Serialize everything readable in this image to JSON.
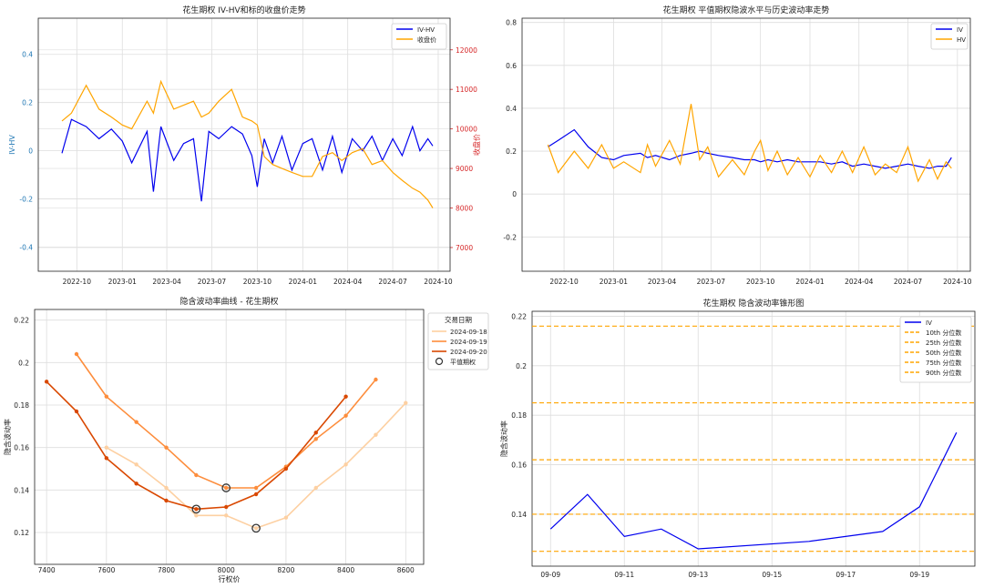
{
  "chart_data": [
    {
      "type": "line",
      "title": "花生期权 IV-HV和标的收盘价走势",
      "ylabel": "IV-HV",
      "y2label": "收盘价",
      "x_ticks": [
        "2022-10",
        "2023-01",
        "2023-04",
        "2023-07",
        "2023-10",
        "2024-01",
        "2024-04",
        "2024-07",
        "2024-10"
      ],
      "ylim": [
        -0.5,
        0.55
      ],
      "y_ticks": [
        0.4,
        0.2,
        0.0,
        -0.2,
        -0.4
      ],
      "y2lim": [
        6400,
        12800
      ],
      "y2_ticks": [
        12000,
        11000,
        10000,
        9000,
        8000,
        7000
      ],
      "legend": "top-right",
      "legend_entries": [
        "IV-HV",
        "收盘价"
      ],
      "series": [
        {
          "name": "IV-HV",
          "axis": "left",
          "color": "#0000ee",
          "x": [
            "2022-09-01",
            "2022-09-20",
            "2022-10-20",
            "2022-11-15",
            "2022-12-10",
            "2023-01-01",
            "2023-01-20",
            "2023-02-20",
            "2023-03-05",
            "2023-03-20",
            "2023-04-15",
            "2023-05-05",
            "2023-05-25",
            "2023-06-10",
            "2023-06-25",
            "2023-07-15",
            "2023-08-10",
            "2023-09-01",
            "2023-09-20",
            "2023-10-01",
            "2023-10-15",
            "2023-11-01",
            "2023-11-20",
            "2023-12-10",
            "2024-01-01",
            "2024-01-20",
            "2024-02-10",
            "2024-03-01",
            "2024-03-20",
            "2024-04-10",
            "2024-05-01",
            "2024-05-20",
            "2024-06-10",
            "2024-07-01",
            "2024-07-20",
            "2024-08-10",
            "2024-08-25",
            "2024-09-10",
            "2024-09-20"
          ],
          "y": [
            -0.01,
            0.13,
            0.1,
            0.05,
            0.09,
            0.04,
            -0.05,
            0.08,
            -0.17,
            0.1,
            -0.04,
            0.03,
            0.05,
            -0.21,
            0.08,
            0.05,
            0.1,
            0.07,
            -0.02,
            -0.15,
            0.05,
            -0.05,
            0.06,
            -0.08,
            0.03,
            0.05,
            -0.08,
            0.06,
            -0.09,
            0.05,
            0.0,
            0.06,
            -0.04,
            0.05,
            -0.02,
            0.1,
            0.0,
            0.05,
            0.02
          ]
        },
        {
          "name": "收盘价",
          "axis": "right",
          "color": "#ffa500",
          "x": [
            "2022-09-01",
            "2022-09-20",
            "2022-10-20",
            "2022-11-15",
            "2022-12-10",
            "2023-01-01",
            "2023-01-20",
            "2023-02-20",
            "2023-03-05",
            "2023-03-20",
            "2023-04-15",
            "2023-05-05",
            "2023-05-25",
            "2023-06-10",
            "2023-06-25",
            "2023-07-15",
            "2023-08-10",
            "2023-09-01",
            "2023-09-20",
            "2023-10-01",
            "2023-10-15",
            "2023-11-01",
            "2023-11-20",
            "2023-12-10",
            "2024-01-01",
            "2024-01-20",
            "2024-02-10",
            "2024-03-01",
            "2024-03-20",
            "2024-04-10",
            "2024-05-01",
            "2024-05-20",
            "2024-06-10",
            "2024-07-01",
            "2024-07-20",
            "2024-08-10",
            "2024-08-25",
            "2024-09-10",
            "2024-09-20"
          ],
          "y": [
            10200,
            10400,
            11100,
            10500,
            10300,
            10100,
            10000,
            10700,
            10400,
            11200,
            10500,
            10600,
            10700,
            10300,
            10400,
            10700,
            11000,
            10300,
            10200,
            10100,
            9300,
            9100,
            9000,
            8900,
            8800,
            8800,
            9300,
            9400,
            9200,
            9400,
            9500,
            9100,
            9200,
            8900,
            8700,
            8500,
            8400,
            8200,
            8000
          ]
        }
      ]
    },
    {
      "type": "line",
      "title": "花生期权 平值期权隐波水平与历史波动率走势",
      "x_ticks": [
        "2022-10",
        "2023-01",
        "2023-04",
        "2023-07",
        "2023-10",
        "2024-01",
        "2024-04",
        "2024-07",
        "2024-10"
      ],
      "ylim": [
        -0.36,
        0.82
      ],
      "y_ticks": [
        0.8,
        0.6,
        0.4,
        0.2,
        0.0,
        -0.2
      ],
      "legend": "top-right",
      "legend_entries": [
        "IV",
        "HV"
      ],
      "series": [
        {
          "name": "IV",
          "color": "#0000ee",
          "x": [
            "2022-09-01",
            "2022-09-20",
            "2022-10-20",
            "2022-11-15",
            "2022-12-10",
            "2023-01-01",
            "2023-01-20",
            "2023-02-20",
            "2023-03-05",
            "2023-03-20",
            "2023-04-15",
            "2023-05-05",
            "2023-05-25",
            "2023-06-10",
            "2023-06-25",
            "2023-07-15",
            "2023-08-10",
            "2023-09-01",
            "2023-09-20",
            "2023-10-01",
            "2023-10-15",
            "2023-11-01",
            "2023-11-20",
            "2023-12-10",
            "2024-01-01",
            "2024-01-20",
            "2024-02-10",
            "2024-03-01",
            "2024-03-20",
            "2024-04-10",
            "2024-05-01",
            "2024-05-20",
            "2024-06-10",
            "2024-07-01",
            "2024-07-20",
            "2024-08-10",
            "2024-08-25",
            "2024-09-10",
            "2024-09-20"
          ],
          "y": [
            0.22,
            0.25,
            0.3,
            0.22,
            0.17,
            0.16,
            0.18,
            0.19,
            0.17,
            0.18,
            0.16,
            0.18,
            0.19,
            0.2,
            0.19,
            0.18,
            0.17,
            0.16,
            0.16,
            0.15,
            0.16,
            0.15,
            0.16,
            0.15,
            0.15,
            0.15,
            0.14,
            0.15,
            0.13,
            0.14,
            0.13,
            0.12,
            0.13,
            0.14,
            0.13,
            0.12,
            0.13,
            0.13,
            0.17
          ]
        },
        {
          "name": "HV",
          "color": "#ffa500",
          "x": [
            "2022-09-01",
            "2022-09-20",
            "2022-10-20",
            "2022-11-15",
            "2022-12-10",
            "2023-01-01",
            "2023-01-20",
            "2023-02-20",
            "2023-03-05",
            "2023-03-20",
            "2023-04-15",
            "2023-05-05",
            "2023-05-25",
            "2023-06-10",
            "2023-06-25",
            "2023-07-15",
            "2023-08-10",
            "2023-09-01",
            "2023-09-20",
            "2023-10-01",
            "2023-10-15",
            "2023-11-01",
            "2023-11-20",
            "2023-12-10",
            "2024-01-01",
            "2024-01-20",
            "2024-02-10",
            "2024-03-01",
            "2024-03-20",
            "2024-04-10",
            "2024-05-01",
            "2024-05-20",
            "2024-06-10",
            "2024-07-01",
            "2024-07-20",
            "2024-08-10",
            "2024-08-25",
            "2024-09-10",
            "2024-09-20"
          ],
          "y": [
            0.23,
            0.1,
            0.2,
            0.12,
            0.23,
            0.12,
            0.15,
            0.1,
            0.23,
            0.13,
            0.25,
            0.14,
            0.42,
            0.16,
            0.22,
            0.08,
            0.16,
            0.09,
            0.2,
            0.25,
            0.11,
            0.2,
            0.09,
            0.17,
            0.08,
            0.18,
            0.1,
            0.2,
            0.1,
            0.22,
            0.09,
            0.14,
            0.1,
            0.22,
            0.06,
            0.16,
            0.07,
            0.15,
            0.12
          ]
        }
      ]
    },
    {
      "type": "line",
      "title": "隐含波动率曲线 - 花生期权",
      "xlabel": "行权价",
      "ylabel": "隐含波动率",
      "xlim": [
        7360,
        8660
      ],
      "x_ticks": [
        7400,
        7600,
        7800,
        8000,
        8200,
        8400,
        8600
      ],
      "ylim": [
        0.105,
        0.225
      ],
      "y_ticks": [
        0.22,
        0.2,
        0.18,
        0.16,
        0.14,
        0.12
      ],
      "legend_title": "交易日期",
      "legend": "top-right",
      "atm_label": "平值期权",
      "series": [
        {
          "name": "2024-09-18",
          "color": "#fdd0a2",
          "x": [
            7600,
            7700,
            7800,
            7900,
            8000,
            8100,
            8200,
            8300,
            8400,
            8500,
            8600
          ],
          "y": [
            0.16,
            0.152,
            0.141,
            0.128,
            0.128,
            0.122,
            0.127,
            0.141,
            0.152,
            0.166,
            0.181
          ],
          "atm": {
            "x": 8100,
            "y": 0.122
          }
        },
        {
          "name": "2024-09-19",
          "color": "#fd8d3c",
          "x": [
            7500,
            7600,
            7700,
            7800,
            7900,
            8000,
            8100,
            8200,
            8300,
            8400,
            8500
          ],
          "y": [
            0.204,
            0.184,
            0.172,
            0.16,
            0.147,
            0.141,
            0.141,
            0.151,
            0.164,
            0.175,
            0.192
          ],
          "atm": {
            "x": 8000,
            "y": 0.141
          }
        },
        {
          "name": "2024-09-20",
          "color": "#d94801",
          "x": [
            7400,
            7500,
            7600,
            7700,
            7800,
            7900,
            8000,
            8100,
            8200,
            8300,
            8400
          ],
          "y": [
            0.191,
            0.177,
            0.155,
            0.143,
            0.135,
            0.131,
            0.132,
            0.138,
            0.15,
            0.167,
            0.184
          ],
          "atm": {
            "x": 7900,
            "y": 0.131
          }
        }
      ]
    },
    {
      "type": "line",
      "title": "花生期权 隐含波动率锥形图",
      "ylabel": "隐含波动率",
      "x": [
        "09-09",
        "09-10",
        "09-11",
        "09-12",
        "09-13",
        "09-16",
        "09-18",
        "09-19",
        "09-20"
      ],
      "x_ticks": [
        "09-09",
        "09-11",
        "09-13",
        "09-15",
        "09-17",
        "09-19"
      ],
      "ylim": [
        0.119,
        0.222
      ],
      "y_ticks": [
        0.22,
        0.2,
        0.18,
        0.16,
        0.14
      ],
      "legend": "top-right",
      "series": [
        {
          "name": "IV",
          "color": "#0000ee",
          "values": [
            0.134,
            0.148,
            0.131,
            0.134,
            0.126,
            0.129,
            0.133,
            0.143,
            0.173
          ]
        }
      ],
      "percentiles": [
        {
          "name": "10th 分位数",
          "value": 0.125
        },
        {
          "name": "25th 分位数",
          "value": 0.14
        },
        {
          "name": "50th 分位数",
          "value": 0.162
        },
        {
          "name": "75th 分位数",
          "value": 0.185
        },
        {
          "name": "90th 分位数",
          "value": 0.216
        }
      ],
      "percentile_color": "#ffa500"
    }
  ]
}
